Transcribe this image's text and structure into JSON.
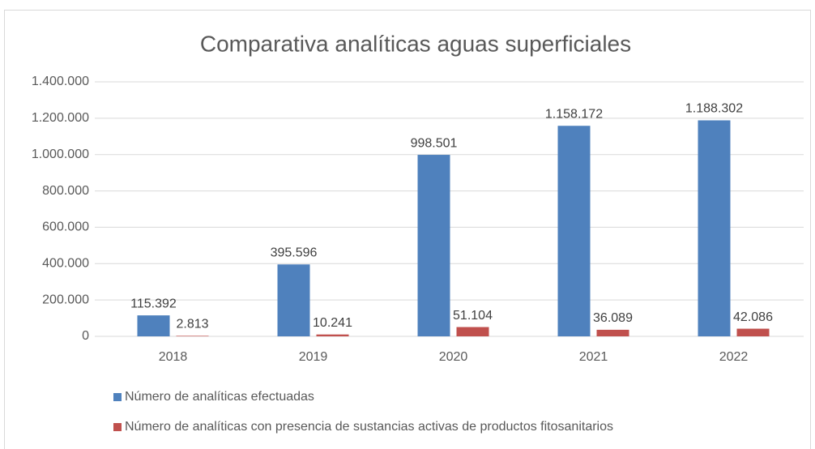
{
  "chart_data": {
    "type": "bar",
    "title": "Comparativa analíticas aguas superficiales",
    "categories": [
      "2018",
      "2019",
      "2020",
      "2021",
      "2022"
    ],
    "series": [
      {
        "name": "Número de analíticas efectuadas",
        "color": "#4f81bd",
        "values": [
          115392,
          395596,
          998501,
          1158172,
          1188302
        ],
        "value_labels": [
          "115.392",
          "395.596",
          "998.501",
          "1.158.172",
          "1.188.302"
        ]
      },
      {
        "name": "Número de analíticas con presencia de sustancias activas de productos fitosanitarios",
        "color": "#c0504d",
        "values": [
          2813,
          10241,
          51104,
          36089,
          42086
        ],
        "value_labels": [
          "2.813",
          "10.241",
          "51.104",
          "36.089",
          "42.086"
        ]
      }
    ],
    "ylim": [
      0,
      1400000
    ],
    "yticks": [
      0,
      {
        "value": 200000,
        "label": "200.000"
      },
      {
        "value": 400000,
        "label": "400.000"
      },
      {
        "value": 600000,
        "label": "600.000"
      },
      {
        "value": 800000,
        "label": "800.000"
      },
      {
        "value": 1000000,
        "label": "1.000.000"
      },
      {
        "value": 1200000,
        "label": "1.200.000"
      },
      {
        "value": 1400000,
        "label": "1.400.000"
      }
    ],
    "grid": true,
    "legend": "bottom"
  }
}
